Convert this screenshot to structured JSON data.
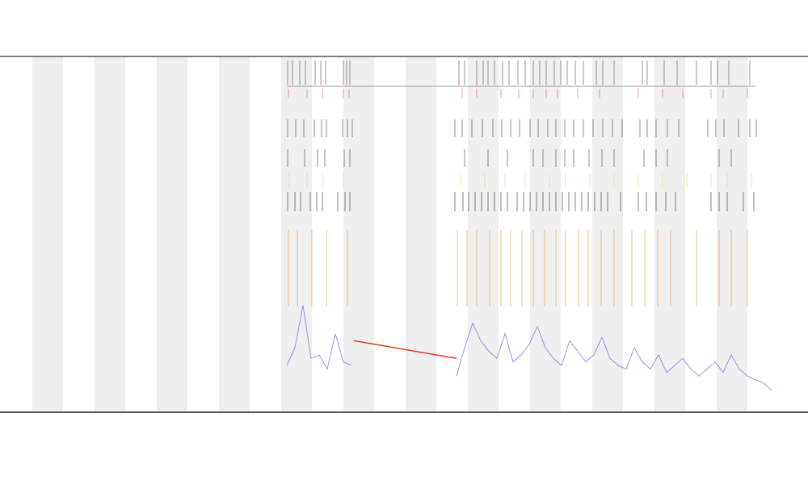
{
  "chart_data": {
    "type": "line",
    "xlim": [
      0,
      1000
    ],
    "ylim": [
      0,
      100
    ],
    "series": [
      {
        "color": "#6b6be0",
        "x": [
          355,
          365,
          375,
          385,
          395,
          405,
          415,
          425,
          435,
          null,
          565,
          575,
          585,
          595,
          605,
          615,
          625,
          635,
          645,
          655,
          665,
          675,
          685,
          695,
          705,
          715,
          725,
          735,
          745,
          755,
          765,
          775,
          785,
          795,
          805,
          815,
          825,
          835,
          845,
          855,
          865,
          875,
          885,
          895,
          905,
          915,
          925,
          935,
          945,
          955
        ],
        "values": [
          13,
          18,
          30,
          15,
          16,
          12,
          22,
          14,
          13,
          null,
          10,
          18,
          25,
          20,
          17,
          15,
          22,
          14,
          16,
          19,
          24,
          18,
          15,
          13,
          20,
          17,
          14,
          16,
          21,
          15,
          13,
          12,
          18,
          14,
          12,
          16,
          11,
          13,
          15,
          12,
          10,
          12,
          14,
          11,
          16,
          12,
          10,
          9,
          8,
          6
        ]
      },
      {
        "color": "#e0401a",
        "x": [
          438,
          565
        ],
        "values": [
          20,
          15
        ]
      }
    ],
    "events": [
      {
        "color": "#444444",
        "x": [
          356,
          362,
          371,
          378,
          390,
          397,
          403,
          425,
          429,
          433,
          568,
          575,
          590,
          598,
          604,
          612,
          622,
          630,
          641,
          650,
          660,
          668,
          676,
          686,
          694,
          702,
          712,
          722,
          738,
          746,
          760,
          795,
          801,
          822,
          838,
          862,
          880,
          888,
          902,
          928
        ]
      },
      {
        "color": "#e05050",
        "x": [
          357,
          380,
          399,
          425,
          432,
          572,
          590,
          620,
          642,
          660,
          676,
          690,
          715,
          742,
          790,
          820,
          845,
          880,
          895,
          925
        ]
      },
      {
        "color": "#333333",
        "x": [
          356,
          366,
          376,
          389,
          398,
          404,
          424,
          430,
          436,
          563,
          572,
          584,
          597,
          610,
          621,
          632,
          643,
          656,
          666,
          678,
          688,
          699,
          710,
          722,
          734,
          746,
          758,
          770,
          792,
          801,
          812,
          826,
          840,
          876,
          886,
          896,
          914,
          928,
          936
        ]
      },
      {
        "color": "#333333",
        "x": [
          356,
          377,
          393,
          402,
          426,
          433,
          575,
          604,
          628,
          660,
          672,
          688,
          699,
          710,
          729,
          745,
          760,
          797,
          812,
          826,
          890,
          905
        ]
      },
      {
        "color": "#d8d860",
        "x": [
          358,
          380,
          400,
          425,
          570,
          600,
          625,
          650,
          680,
          700,
          730,
          760,
          790,
          820,
          850,
          880,
          900,
          930
        ]
      },
      {
        "color": "#222222",
        "x": [
          356,
          365,
          372,
          384,
          392,
          399,
          418,
          427,
          433,
          563,
          573,
          580,
          588,
          596,
          604,
          612,
          620,
          628,
          640,
          648,
          656,
          664,
          672,
          680,
          688,
          696,
          704,
          712,
          720,
          728,
          736,
          744,
          752,
          768,
          790,
          800,
          812,
          824,
          836,
          880,
          890,
          900,
          920,
          933
        ]
      },
      {
        "color": "#e0902a",
        "x": [
          357,
          368,
          386,
          404,
          430,
          566,
          578,
          590,
          606,
          620,
          632,
          646,
          660,
          674,
          688,
          700,
          716,
          728,
          744,
          760,
          782,
          798,
          814,
          830,
          862,
          890,
          905,
          925
        ]
      }
    ]
  }
}
